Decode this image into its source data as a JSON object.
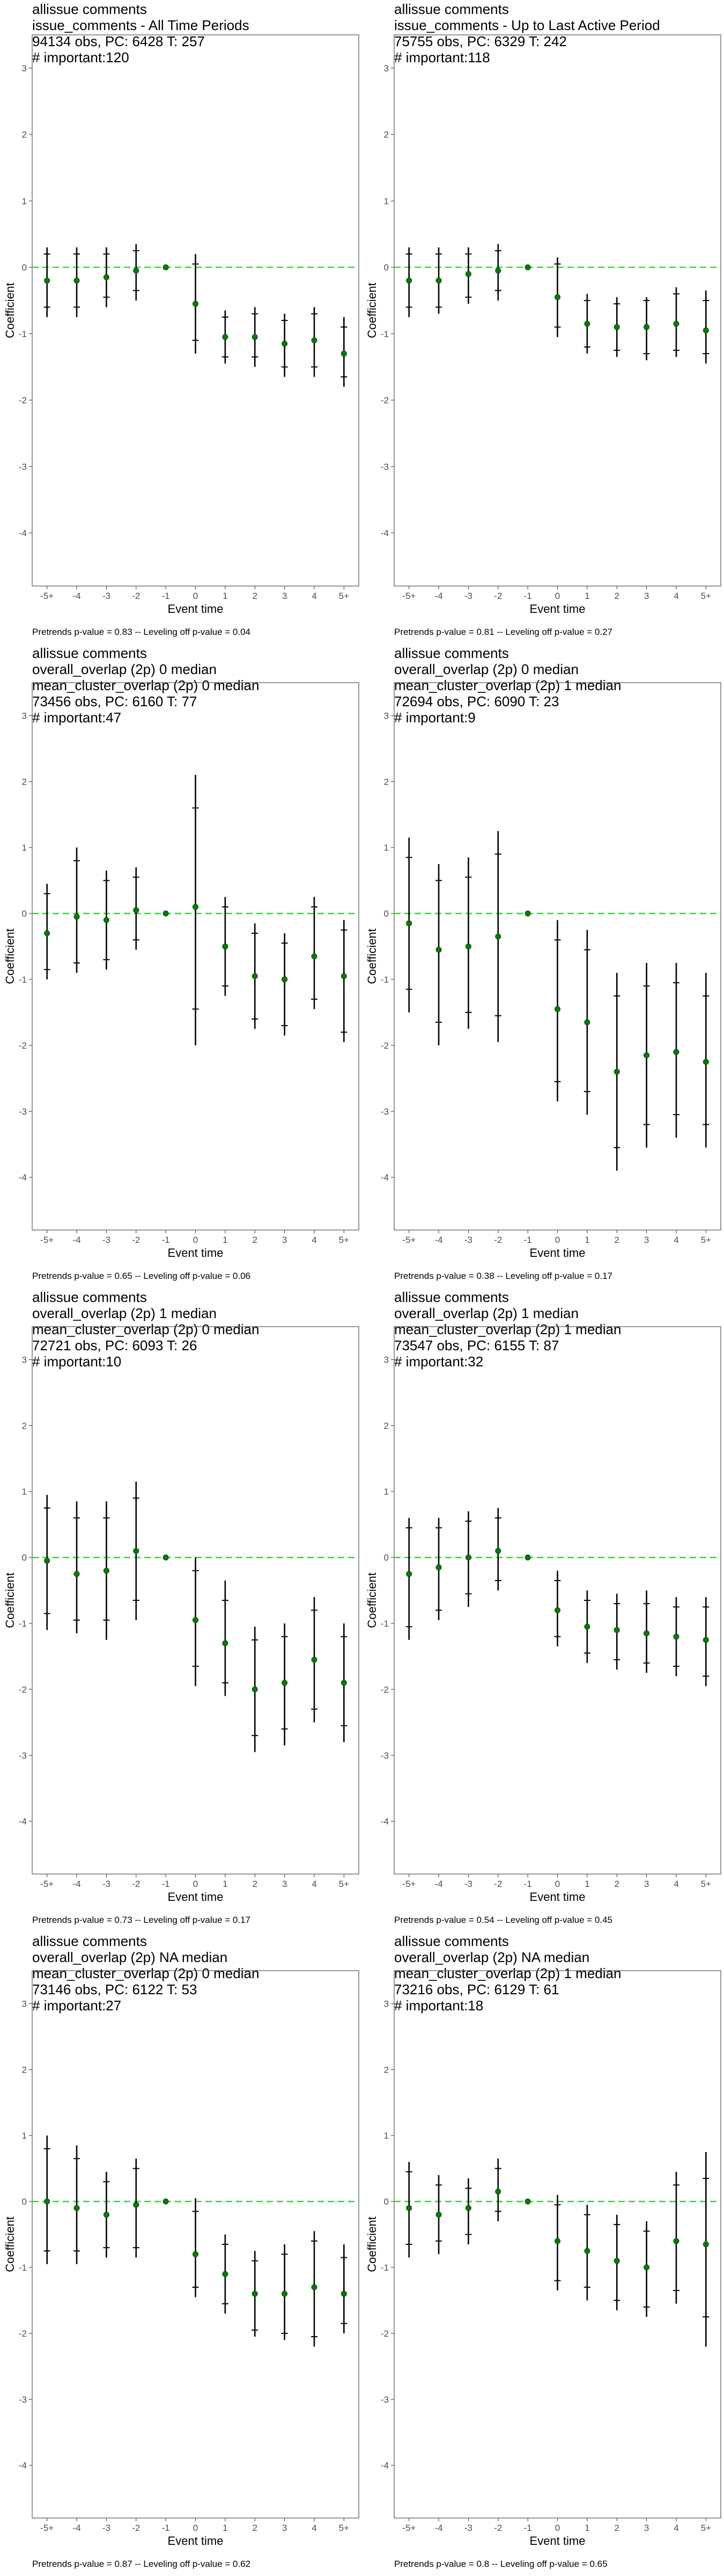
{
  "chart_data": [
    {
      "type": "scatter",
      "title_lines": [
        " allissue comments",
        "issue_comments - All Time Periods",
        "94134 obs, PC: 6428 T: 257",
        "# important:120"
      ],
      "xlabel": "Event time",
      "ylabel": "Coefficient",
      "ylim": [
        -4.8,
        3.5
      ],
      "yticks": [
        -4,
        -3,
        -2,
        -1,
        0,
        1,
        2,
        3
      ],
      "categories": [
        "-5+",
        "-4",
        "-3",
        "-2",
        "-1",
        "0",
        "1",
        "2",
        "3",
        "4",
        "5+"
      ],
      "y": [
        -0.2,
        -0.2,
        -0.15,
        -0.05,
        0,
        -0.55,
        -1.05,
        -1.05,
        -1.15,
        -1.1,
        -1.3
      ],
      "ci_outer": [
        [
          -0.75,
          0.3
        ],
        [
          -0.75,
          0.3
        ],
        [
          -0.6,
          0.3
        ],
        [
          -0.5,
          0.35
        ],
        [
          0,
          0
        ],
        [
          -1.3,
          0.2
        ],
        [
          -1.45,
          -0.65
        ],
        [
          -1.5,
          -0.6
        ],
        [
          -1.65,
          -0.7
        ],
        [
          -1.65,
          -0.6
        ],
        [
          -1.8,
          -0.75
        ]
      ],
      "ci_inner": [
        [
          -0.6,
          0.2
        ],
        [
          -0.6,
          0.2
        ],
        [
          -0.45,
          0.2
        ],
        [
          -0.35,
          0.25
        ],
        [
          0,
          0
        ],
        [
          -1.1,
          0.05
        ],
        [
          -1.35,
          -0.75
        ],
        [
          -1.35,
          -0.7
        ],
        [
          -1.5,
          -0.8
        ],
        [
          -1.5,
          -0.7
        ],
        [
          -1.65,
          -0.9
        ]
      ],
      "reference_line": 0,
      "footer": "Pretrends p-value = 0.83 -- Leveling off p-value = 0.04"
    },
    {
      "type": "scatter",
      "title_lines": [
        " allissue comments",
        "issue_comments - Up to Last Active Period",
        "75755 obs, PC: 6329 T: 242",
        "# important:118"
      ],
      "xlabel": "Event time",
      "ylabel": "Coefficient",
      "ylim": [
        -4.8,
        3.5
      ],
      "yticks": [
        -4,
        -3,
        -2,
        -1,
        0,
        1,
        2,
        3
      ],
      "categories": [
        "-5+",
        "-4",
        "-3",
        "-2",
        "-1",
        "0",
        "1",
        "2",
        "3",
        "4",
        "5+"
      ],
      "y": [
        -0.2,
        -0.2,
        -0.1,
        -0.05,
        0,
        -0.45,
        -0.85,
        -0.9,
        -0.9,
        -0.85,
        -0.95
      ],
      "ci_outer": [
        [
          -0.75,
          0.3
        ],
        [
          -0.7,
          0.3
        ],
        [
          -0.55,
          0.3
        ],
        [
          -0.5,
          0.35
        ],
        [
          0,
          0
        ],
        [
          -1.05,
          0.15
        ],
        [
          -1.3,
          -0.4
        ],
        [
          -1.35,
          -0.45
        ],
        [
          -1.4,
          -0.45
        ],
        [
          -1.35,
          -0.3
        ],
        [
          -1.45,
          -0.35
        ]
      ],
      "ci_inner": [
        [
          -0.6,
          0.2
        ],
        [
          -0.6,
          0.2
        ],
        [
          -0.45,
          0.2
        ],
        [
          -0.35,
          0.25
        ],
        [
          0,
          0
        ],
        [
          -0.9,
          0.05
        ],
        [
          -1.2,
          -0.5
        ],
        [
          -1.25,
          -0.55
        ],
        [
          -1.3,
          -0.5
        ],
        [
          -1.25,
          -0.4
        ],
        [
          -1.3,
          -0.5
        ]
      ],
      "reference_line": 0,
      "footer": "Pretrends p-value = 0.81 -- Leveling off p-value = 0.27"
    },
    {
      "type": "scatter",
      "title_lines": [
        " allissue comments",
        "overall_overlap (2p) 0 median",
        "mean_cluster_overlap (2p) 0 median",
        "73456 obs, PC: 6160 T: 77",
        "# important:47"
      ],
      "xlabel": "Event time",
      "ylabel": "Coefficient",
      "ylim": [
        -4.8,
        3.5
      ],
      "yticks": [
        -4,
        -3,
        -2,
        -1,
        0,
        1,
        2,
        3
      ],
      "categories": [
        "-5+",
        "-4",
        "-3",
        "-2",
        "-1",
        "0",
        "1",
        "2",
        "3",
        "4",
        "5+"
      ],
      "y": [
        -0.3,
        -0.05,
        -0.1,
        0.05,
        0,
        0.1,
        -0.5,
        -0.95,
        -1.0,
        -0.65,
        -0.95
      ],
      "ci_outer": [
        [
          -1.0,
          0.45
        ],
        [
          -0.9,
          1.0
        ],
        [
          -0.85,
          0.65
        ],
        [
          -0.55,
          0.7
        ],
        [
          0,
          0
        ],
        [
          -2.0,
          2.1
        ],
        [
          -1.25,
          0.25
        ],
        [
          -1.75,
          -0.15
        ],
        [
          -1.85,
          -0.3
        ],
        [
          -1.45,
          0.25
        ],
        [
          -1.95,
          -0.1
        ]
      ],
      "ci_inner": [
        [
          -0.85,
          0.3
        ],
        [
          -0.75,
          0.8
        ],
        [
          -0.7,
          0.5
        ],
        [
          -0.4,
          0.55
        ],
        [
          0,
          0
        ],
        [
          -1.45,
          1.6
        ],
        [
          -1.1,
          0.1
        ],
        [
          -1.6,
          -0.3
        ],
        [
          -1.7,
          -0.45
        ],
        [
          -1.3,
          0.1
        ],
        [
          -1.8,
          -0.25
        ]
      ],
      "reference_line": 0,
      "footer": "Pretrends p-value = 0.65 -- Leveling off p-value = 0.06"
    },
    {
      "type": "scatter",
      "title_lines": [
        " allissue comments",
        "overall_overlap (2p) 0 median",
        "mean_cluster_overlap (2p) 1 median",
        "72694 obs, PC: 6090 T: 23",
        "# important:9"
      ],
      "xlabel": "Event time",
      "ylabel": "Coefficient",
      "ylim": [
        -4.8,
        3.5
      ],
      "yticks": [
        -4,
        -3,
        -2,
        -1,
        0,
        1,
        2,
        3
      ],
      "categories": [
        "-5+",
        "-4",
        "-3",
        "-2",
        "-1",
        "0",
        "1",
        "2",
        "3",
        "4",
        "5+"
      ],
      "y": [
        -0.15,
        -0.55,
        -0.5,
        -0.35,
        0,
        -1.45,
        -1.65,
        -2.4,
        -2.15,
        -2.1,
        -2.25
      ],
      "ci_outer": [
        [
          -1.5,
          1.15
        ],
        [
          -2.0,
          0.75
        ],
        [
          -1.75,
          0.85
        ],
        [
          -1.95,
          1.25
        ],
        [
          0,
          0
        ],
        [
          -2.85,
          -0.1
        ],
        [
          -3.05,
          -0.25
        ],
        [
          -3.9,
          -0.9
        ],
        [
          -3.55,
          -0.75
        ],
        [
          -3.4,
          -0.75
        ],
        [
          -3.55,
          -0.9
        ]
      ],
      "ci_inner": [
        [
          -1.15,
          0.85
        ],
        [
          -1.65,
          0.5
        ],
        [
          -1.5,
          0.55
        ],
        [
          -1.55,
          0.9
        ],
        [
          0,
          0
        ],
        [
          -2.55,
          -0.4
        ],
        [
          -2.7,
          -0.55
        ],
        [
          -3.55,
          -1.25
        ],
        [
          -3.2,
          -1.1
        ],
        [
          -3.05,
          -1.05
        ],
        [
          -3.2,
          -1.25
        ]
      ],
      "reference_line": 0,
      "footer": "Pretrends p-value = 0.38 -- Leveling off p-value = 0.17"
    },
    {
      "type": "scatter",
      "title_lines": [
        " allissue comments",
        "overall_overlap (2p) 1 median",
        "mean_cluster_overlap (2p) 0 median",
        "72721 obs, PC: 6093 T: 26",
        "# important:10"
      ],
      "xlabel": "Event time",
      "ylabel": "Coefficient",
      "ylim": [
        -4.8,
        3.5
      ],
      "yticks": [
        -4,
        -3,
        -2,
        -1,
        0,
        1,
        2,
        3
      ],
      "categories": [
        "-5+",
        "-4",
        "-3",
        "-2",
        "-1",
        "0",
        "1",
        "2",
        "3",
        "4",
        "5+"
      ],
      "y": [
        -0.05,
        -0.25,
        -0.2,
        0.1,
        0,
        -0.95,
        -1.3,
        -2.0,
        -1.9,
        -1.55,
        -1.9
      ],
      "ci_outer": [
        [
          -1.1,
          0.95
        ],
        [
          -1.15,
          0.85
        ],
        [
          -1.25,
          0.85
        ],
        [
          -0.95,
          1.15
        ],
        [
          0,
          0
        ],
        [
          -1.95,
          0.0
        ],
        [
          -2.1,
          -0.35
        ],
        [
          -2.95,
          -1.05
        ],
        [
          -2.85,
          -1.0
        ],
        [
          -2.5,
          -0.6
        ],
        [
          -2.8,
          -1.0
        ]
      ],
      "ci_inner": [
        [
          -0.85,
          0.75
        ],
        [
          -0.95,
          0.6
        ],
        [
          -0.95,
          0.6
        ],
        [
          -0.65,
          0.9
        ],
        [
          0,
          0
        ],
        [
          -1.65,
          -0.2
        ],
        [
          -1.9,
          -0.65
        ],
        [
          -2.7,
          -1.25
        ],
        [
          -2.6,
          -1.2
        ],
        [
          -2.3,
          -0.8
        ],
        [
          -2.55,
          -1.2
        ]
      ],
      "reference_line": 0,
      "footer": "Pretrends p-value = 0.73 -- Leveling off p-value = 0.17"
    },
    {
      "type": "scatter",
      "title_lines": [
        " allissue comments",
        "overall_overlap (2p) 1 median",
        "mean_cluster_overlap (2p) 1 median",
        "73547 obs, PC: 6155 T: 87",
        "# important:32"
      ],
      "xlabel": "Event time",
      "ylabel": "Coefficient",
      "ylim": [
        -4.8,
        3.5
      ],
      "yticks": [
        -4,
        -3,
        -2,
        -1,
        0,
        1,
        2,
        3
      ],
      "categories": [
        "-5+",
        "-4",
        "-3",
        "-2",
        "-1",
        "0",
        "1",
        "2",
        "3",
        "4",
        "5+"
      ],
      "y": [
        -0.25,
        -0.15,
        0.0,
        0.1,
        0,
        -0.8,
        -1.05,
        -1.1,
        -1.15,
        -1.2,
        -1.25
      ],
      "ci_outer": [
        [
          -1.25,
          0.6
        ],
        [
          -0.95,
          0.6
        ],
        [
          -0.75,
          0.7
        ],
        [
          -0.5,
          0.75
        ],
        [
          0,
          0
        ],
        [
          -1.35,
          -0.2
        ],
        [
          -1.6,
          -0.5
        ],
        [
          -1.7,
          -0.55
        ],
        [
          -1.75,
          -0.5
        ],
        [
          -1.8,
          -0.6
        ],
        [
          -1.95,
          -0.6
        ]
      ],
      "ci_inner": [
        [
          -1.05,
          0.45
        ],
        [
          -0.8,
          0.45
        ],
        [
          -0.55,
          0.55
        ],
        [
          -0.35,
          0.6
        ],
        [
          0,
          0
        ],
        [
          -1.2,
          -0.35
        ],
        [
          -1.45,
          -0.65
        ],
        [
          -1.55,
          -0.7
        ],
        [
          -1.6,
          -0.7
        ],
        [
          -1.65,
          -0.75
        ],
        [
          -1.8,
          -0.75
        ]
      ],
      "reference_line": 0,
      "footer": "Pretrends p-value = 0.54 -- Leveling off p-value = 0.45"
    },
    {
      "type": "scatter",
      "title_lines": [
        " allissue comments",
        "overall_overlap (2p) NA median",
        "mean_cluster_overlap (2p) 0 median",
        "73146 obs, PC: 6122 T: 53",
        "# important:27"
      ],
      "xlabel": "Event time",
      "ylabel": "Coefficient",
      "ylim": [
        -4.8,
        3.5
      ],
      "yticks": [
        -4,
        -3,
        -2,
        -1,
        0,
        1,
        2,
        3
      ],
      "categories": [
        "-5+",
        "-4",
        "-3",
        "-2",
        "-1",
        "0",
        "1",
        "2",
        "3",
        "4",
        "5+"
      ],
      "y": [
        0.0,
        -0.1,
        -0.2,
        -0.05,
        0,
        -0.8,
        -1.1,
        -1.4,
        -1.4,
        -1.3,
        -1.4
      ],
      "ci_outer": [
        [
          -0.95,
          1.0
        ],
        [
          -0.95,
          0.85
        ],
        [
          -0.85,
          0.45
        ],
        [
          -0.85,
          0.65
        ],
        [
          0,
          0
        ],
        [
          -1.45,
          0.05
        ],
        [
          -1.7,
          -0.5
        ],
        [
          -2.05,
          -0.75
        ],
        [
          -2.1,
          -0.65
        ],
        [
          -2.2,
          -0.45
        ],
        [
          -2.0,
          -0.65
        ]
      ],
      "ci_inner": [
        [
          -0.75,
          0.8
        ],
        [
          -0.75,
          0.65
        ],
        [
          -0.7,
          0.3
        ],
        [
          -0.7,
          0.5
        ],
        [
          0,
          0
        ],
        [
          -1.3,
          -0.15
        ],
        [
          -1.55,
          -0.65
        ],
        [
          -1.95,
          -0.9
        ],
        [
          -2.0,
          -0.8
        ],
        [
          -2.05,
          -0.6
        ],
        [
          -1.85,
          -0.85
        ]
      ],
      "reference_line": 0,
      "footer": "Pretrends p-value = 0.87 -- Leveling off p-value = 0.62"
    },
    {
      "type": "scatter",
      "title_lines": [
        " allissue comments",
        "overall_overlap (2p) NA median",
        "mean_cluster_overlap (2p) 1 median",
        "73216 obs, PC: 6129 T: 61",
        "# important:18"
      ],
      "xlabel": "Event time",
      "ylabel": "Coefficient",
      "ylim": [
        -4.8,
        3.5
      ],
      "yticks": [
        -4,
        -3,
        -2,
        -1,
        0,
        1,
        2,
        3
      ],
      "categories": [
        "-5+",
        "-4",
        "-3",
        "-2",
        "-1",
        "0",
        "1",
        "2",
        "3",
        "4",
        "5+"
      ],
      "y": [
        -0.1,
        -0.2,
        -0.1,
        0.15,
        0,
        -0.6,
        -0.75,
        -0.9,
        -1.0,
        -0.6,
        -0.65
      ],
      "ci_outer": [
        [
          -0.85,
          0.6
        ],
        [
          -0.8,
          0.4
        ],
        [
          -0.65,
          0.35
        ],
        [
          -0.3,
          0.65
        ],
        [
          0,
          0
        ],
        [
          -1.35,
          0.1
        ],
        [
          -1.5,
          -0.05
        ],
        [
          -1.65,
          -0.2
        ],
        [
          -1.75,
          -0.3
        ],
        [
          -1.55,
          0.45
        ],
        [
          -2.2,
          0.75
        ]
      ],
      "ci_inner": [
        [
          -0.65,
          0.45
        ],
        [
          -0.6,
          0.25
        ],
        [
          -0.5,
          0.2
        ],
        [
          -0.15,
          0.5
        ],
        [
          0,
          0
        ],
        [
          -1.2,
          -0.05
        ],
        [
          -1.3,
          -0.2
        ],
        [
          -1.5,
          -0.35
        ],
        [
          -1.6,
          -0.45
        ],
        [
          -1.35,
          0.25
        ],
        [
          -1.75,
          0.35
        ]
      ],
      "reference_line": 0,
      "footer": "Pretrends p-value = 0.8 -- Leveling off p-value = 0.65"
    }
  ]
}
